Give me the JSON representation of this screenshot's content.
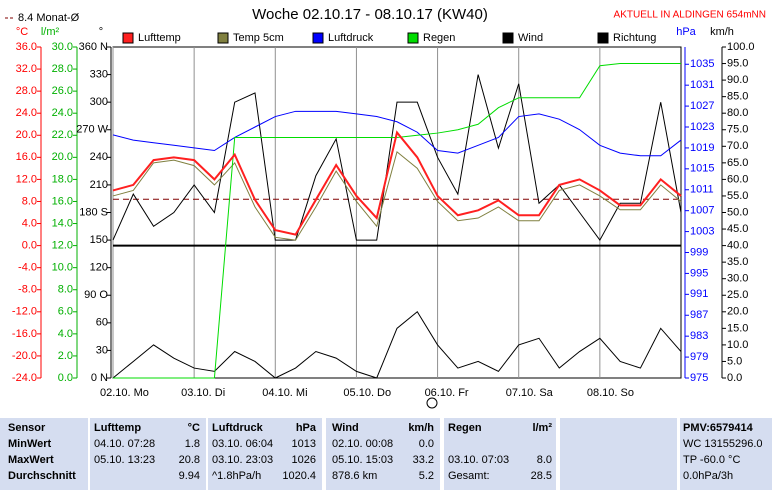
{
  "chart_data": {
    "type": "line",
    "title": "Woche 02.10.17 - 08.10.17 (KW40)",
    "annotation": "AKTUELL IN ALDINGEN 654mNN",
    "monthly_avg": 8.4,
    "monthly_avg_label": "8.4 Monat-Ø",
    "x": [
      0,
      6,
      12,
      18,
      24,
      30,
      36,
      42,
      48,
      54,
      60,
      66,
      72,
      78,
      84,
      90,
      96,
      102,
      108,
      114,
      120,
      126,
      132,
      138,
      144,
      150,
      156,
      162,
      168
    ],
    "xlim": [
      0,
      168
    ],
    "xticks": [
      {
        "value": 0,
        "label": "02.10. Mo"
      },
      {
        "value": 24,
        "label": "03.10. Di"
      },
      {
        "value": 48,
        "label": "04.10. Mi"
      },
      {
        "value": 72,
        "label": "05.10. Do"
      },
      {
        "value": 96,
        "label": "06.10. Fr"
      },
      {
        "value": 120,
        "label": "07.10. Sa"
      },
      {
        "value": 144,
        "label": "08.10. So"
      }
    ],
    "grid": true,
    "axes": [
      {
        "label": "°C",
        "color": "#ff0000",
        "ylim": [
          -24,
          36
        ],
        "yticks": [
          {
            "value": 36,
            "label": "36.0"
          },
          {
            "value": 32,
            "label": "32.0"
          },
          {
            "value": 28,
            "label": "28.0"
          },
          {
            "value": 24,
            "label": "24.0"
          },
          {
            "value": 20,
            "label": "20.0"
          },
          {
            "value": 16,
            "label": "16.0"
          },
          {
            "value": 12,
            "label": "12.0"
          },
          {
            "value": 8,
            "label": "8.0"
          },
          {
            "value": 4,
            "label": "4.0"
          },
          {
            "value": 0,
            "label": "0.0"
          },
          {
            "value": -4,
            "label": "-4.0"
          },
          {
            "value": -8,
            "label": "-8.0"
          },
          {
            "value": -12,
            "label": "-12.0"
          },
          {
            "value": -16,
            "label": "-16.0"
          },
          {
            "value": -20,
            "label": "-20.0"
          },
          {
            "value": -24,
            "label": "-24.0"
          }
        ]
      },
      {
        "label": "l/m²",
        "color": "#00b000",
        "ylim": [
          0,
          30
        ],
        "yticks": [
          {
            "value": 30,
            "label": "30.0"
          },
          {
            "value": 28,
            "label": "28.0"
          },
          {
            "value": 26,
            "label": "26.0"
          },
          {
            "value": 24,
            "label": "24.0"
          },
          {
            "value": 22,
            "label": "22.0"
          },
          {
            "value": 20,
            "label": "20.0"
          },
          {
            "value": 18,
            "label": "18.0"
          },
          {
            "value": 16,
            "label": "16.0"
          },
          {
            "value": 14,
            "label": "14.0"
          },
          {
            "value": 12,
            "label": "12.0"
          },
          {
            "value": 10,
            "label": "10.0"
          },
          {
            "value": 8,
            "label": "8.0"
          },
          {
            "value": 6,
            "label": "6.0"
          },
          {
            "value": 4,
            "label": "4.0"
          },
          {
            "value": 2,
            "label": "2.0"
          },
          {
            "value": 0,
            "label": "0.0"
          }
        ]
      },
      {
        "label": "°",
        "color": "#000000",
        "ylim": [
          0,
          360
        ],
        "yticks": [
          {
            "value": 360,
            "label": "360 N"
          },
          330,
          300,
          {
            "value": 270,
            "label": "270 W"
          },
          240,
          210,
          {
            "value": 180,
            "label": "180 S"
          },
          150,
          120,
          {
            "value": 90,
            "label": "90 O"
          },
          60,
          30,
          {
            "value": 0,
            "label": "0 N"
          }
        ]
      },
      {
        "label": "hPa",
        "color": "#0000ff",
        "ylim": [
          975,
          1038.3
        ],
        "yticks": [
          1035,
          1031,
          1027,
          1023,
          1019,
          1015,
          1011,
          1007,
          1003,
          999,
          995,
          991,
          987,
          983,
          979,
          975
        ]
      },
      {
        "label": "km/h",
        "color": "#000000",
        "ylim": [
          0,
          100
        ],
        "yticks": [
          {
            "value": 100,
            "label": "100.0"
          },
          {
            "value": 95,
            "label": "95.0"
          },
          {
            "value": 90,
            "label": "90.0"
          },
          {
            "value": 85,
            "label": "85.0"
          },
          {
            "value": 80,
            "label": "80.0"
          },
          {
            "value": 75,
            "label": "75.0"
          },
          {
            "value": 70,
            "label": "70.0"
          },
          {
            "value": 65,
            "label": "65.0"
          },
          {
            "value": 60,
            "label": "60.0"
          },
          {
            "value": 55,
            "label": "55.0"
          },
          {
            "value": 50,
            "label": "50.0"
          },
          {
            "value": 45,
            "label": "45.0"
          },
          {
            "value": 40,
            "label": "40.0"
          },
          {
            "value": 35,
            "label": "35.0"
          },
          {
            "value": 30,
            "label": "30.0"
          },
          {
            "value": 25,
            "label": "25.0"
          },
          {
            "value": 20,
            "label": "20.0"
          },
          {
            "value": 15,
            "label": "15.0"
          },
          {
            "value": 10,
            "label": "10.0"
          },
          {
            "value": 5,
            "label": "5.0"
          },
          {
            "value": 0,
            "label": "0.0"
          }
        ]
      }
    ],
    "series": [
      {
        "name": "Lufttemp",
        "color": "#ff2020",
        "axis": "°C",
        "values": [
          10,
          11,
          15.5,
          16,
          15.5,
          12,
          16.5,
          8.3,
          2.8,
          2,
          8.3,
          14.6,
          9,
          5,
          20.5,
          16,
          9,
          5.5,
          6.4,
          8.2,
          5.5,
          5.5,
          11,
          12,
          10,
          7.3,
          7.3,
          12,
          9
        ]
      },
      {
        "name": "Temp 5cm",
        "color": "#808040",
        "axis": "°C",
        "values": [
          9,
          10,
          15,
          15.5,
          14.5,
          11,
          15,
          7,
          1.5,
          1,
          7,
          13.5,
          8,
          3.5,
          17,
          14,
          8,
          4.5,
          5,
          7,
          4.5,
          4.5,
          10,
          11,
          9,
          6.5,
          6.5,
          11,
          8
        ]
      },
      {
        "name": "Luftdruck",
        "color": "#0000ff",
        "axis": "hPa",
        "values": [
          1021.5,
          1020.5,
          1020,
          1019.5,
          1019,
          1018.5,
          1021,
          1023,
          1025,
          1026,
          1026,
          1026,
          1025.5,
          1025,
          1024,
          1022,
          1018.5,
          1018,
          1019.5,
          1021,
          1025,
          1025.5,
          1024.5,
          1022.5,
          1019.5,
          1018,
          1017.5,
          1017.5,
          1020.5
        ]
      },
      {
        "name": "Regen",
        "color": "#00dd00",
        "axis": "l/m²",
        "values": [
          0,
          0,
          0,
          0,
          0,
          0,
          21.8,
          21.8,
          21.8,
          21.8,
          21.8,
          21.8,
          21.8,
          21.8,
          21.8,
          22,
          22.2,
          22.5,
          23,
          24.5,
          25.4,
          25.4,
          25.4,
          25.4,
          28.3,
          28.5,
          28.5,
          28.5,
          28.5
        ]
      },
      {
        "name": "Wind",
        "color": "#000000",
        "axis": "km/h",
        "values": [
          0,
          5,
          10,
          6,
          3,
          2,
          8,
          5,
          0,
          3,
          8,
          6,
          2,
          0,
          15,
          20,
          10,
          3,
          5,
          2,
          10,
          12,
          3,
          8,
          12,
          5,
          3,
          15,
          8
        ]
      },
      {
        "name": "Richtung",
        "color": "#000000",
        "axis": "°",
        "values": [
          150,
          200,
          165,
          180,
          210,
          180,
          300,
          310,
          150,
          150,
          220,
          260,
          150,
          150,
          300,
          300,
          240,
          200,
          330,
          250,
          320,
          190,
          210,
          180,
          150,
          190,
          190,
          300,
          180
        ]
      }
    ]
  },
  "table": {
    "rows": [
      [
        "Sensor",
        "Lufttemp",
        "°C",
        "Luftdruck",
        "hPa",
        "Wind",
        "km/h",
        "Regen",
        "l/m²",
        "PMV:6579414"
      ],
      [
        "MinWert",
        "04.10. 07:28",
        "1.8",
        "03.10. 06:04",
        "1013",
        "02.10. 00:08",
        "0.0",
        null,
        null,
        "WC 13155296.0"
      ],
      [
        "MaxWert",
        "05.10. 13:23",
        "20.8",
        "03.10. 23:03",
        "1026",
        "05.10. 15:03",
        "33.2",
        "03.10. 07:03",
        "8.0",
        "TP -60.0 °C"
      ],
      [
        "Durchschnitt",
        null,
        "9.94",
        "^1.8hPa/h",
        "1020.4",
        "878.6 km",
        "5.2",
        "Gesamt:",
        "28.5",
        "0.0hPa/3h"
      ]
    ]
  }
}
